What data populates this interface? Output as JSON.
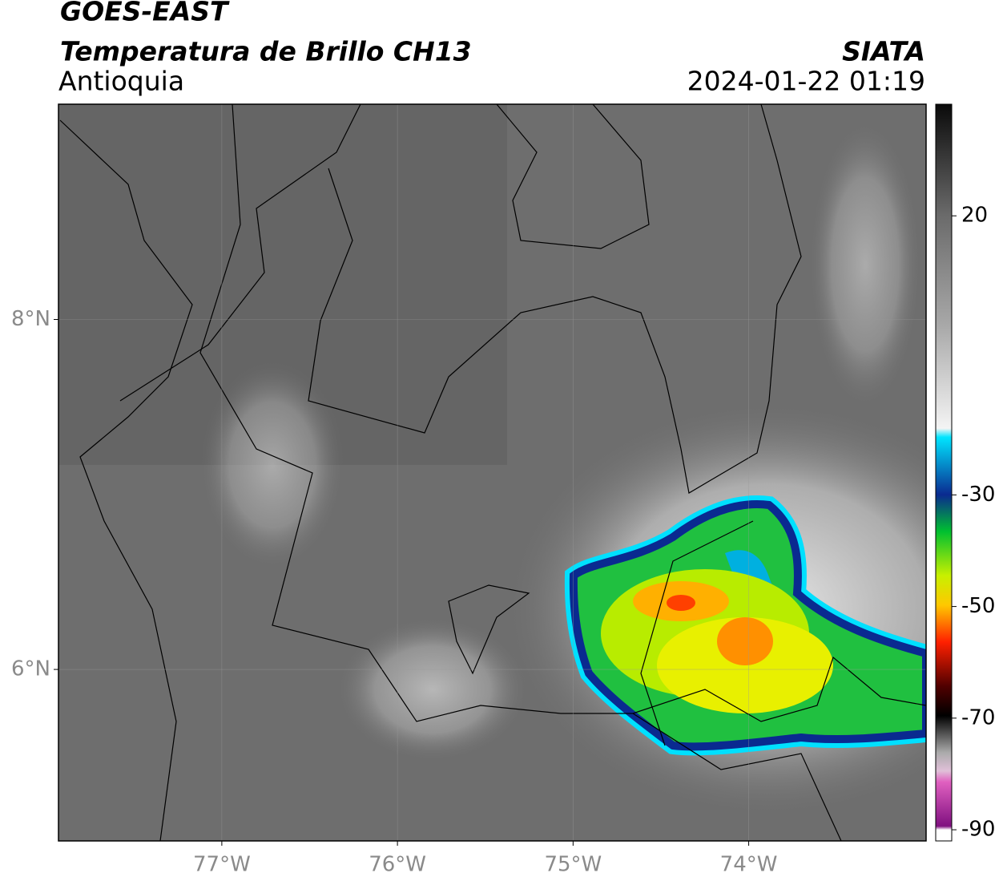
{
  "chart_data": {
    "type": "map",
    "title": "GOES-EAST",
    "subtitle": "Temperatura de Brillo CH13",
    "region": "Antioquia",
    "source": "SIATA",
    "datetime": "2024-01-22 01:19",
    "xlim": [
      -77.93,
      -72.99
    ],
    "ylim": [
      5.02,
      9.23
    ],
    "xticks": [
      {
        "value": -77,
        "label": "77°W"
      },
      {
        "value": -76,
        "label": "76°W"
      },
      {
        "value": -75,
        "label": "75°W"
      },
      {
        "value": -74,
        "label": "74°W"
      }
    ],
    "yticks": [
      {
        "value": 6,
        "label": "6°N"
      },
      {
        "value": 8,
        "label": "8°N"
      }
    ],
    "grid": true,
    "colorbar": {
      "lim": [
        -92,
        40
      ],
      "ticks": [
        20,
        -30,
        -50,
        -70,
        -90
      ]
    }
  }
}
